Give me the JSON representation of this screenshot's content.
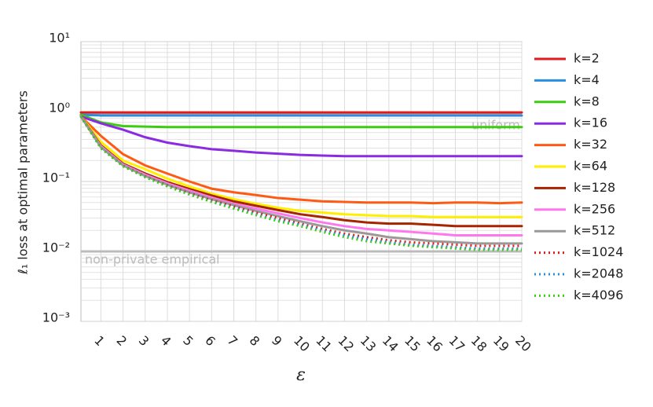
{
  "chart_data": {
    "type": "line",
    "y_label": "ℓ₁ loss at optimal parameters",
    "x_label": "ε",
    "yscale": "log",
    "grid": true,
    "legend": "right",
    "x": [
      0.1,
      1,
      2,
      3,
      4,
      5,
      6,
      7,
      8,
      9,
      10,
      11,
      12,
      13,
      14,
      15,
      16,
      17,
      18,
      19,
      20
    ],
    "xlim": [
      0.1,
      20
    ],
    "xticks": [
      1,
      2,
      3,
      4,
      5,
      6,
      7,
      8,
      9,
      10,
      11,
      12,
      13,
      14,
      15,
      16,
      17,
      18,
      19,
      20
    ],
    "ylim": [
      0.001,
      10
    ],
    "yticks": [
      {
        "value": 0.001,
        "label": "10⁻³"
      },
      {
        "value": 0.01,
        "label": "10⁻²"
      },
      {
        "value": 0.1,
        "label": "10⁻¹"
      },
      {
        "value": 1,
        "label": "10⁰"
      },
      {
        "value": 10,
        "label": "10¹"
      }
    ],
    "reference_lines": [
      {
        "label": "uniform",
        "value": 0.95,
        "color": "#bbbbbb"
      },
      {
        "label": "non-private empirical",
        "value": 0.01,
        "color": "#bbbbbb"
      }
    ],
    "series": [
      {
        "name": "k=2",
        "color": "#e31a1c",
        "dash": "solid",
        "values": [
          0.97,
          0.97,
          0.97,
          0.97,
          0.97,
          0.97,
          0.97,
          0.97,
          0.97,
          0.97,
          0.97,
          0.97,
          0.97,
          0.97,
          0.97,
          0.97,
          0.97,
          0.97,
          0.97,
          0.97,
          0.97
        ]
      },
      {
        "name": "k=4",
        "color": "#2a8ee0",
        "dash": "solid",
        "values": [
          0.9,
          0.88,
          0.88,
          0.88,
          0.88,
          0.88,
          0.88,
          0.88,
          0.88,
          0.88,
          0.88,
          0.88,
          0.88,
          0.88,
          0.88,
          0.88,
          0.88,
          0.88,
          0.88,
          0.88,
          0.88
        ]
      },
      {
        "name": "k=8",
        "color": "#3ccc10",
        "dash": "solid",
        "values": [
          0.9,
          0.7,
          0.62,
          0.61,
          0.6,
          0.6,
          0.6,
          0.6,
          0.6,
          0.6,
          0.6,
          0.6,
          0.6,
          0.6,
          0.6,
          0.6,
          0.6,
          0.6,
          0.6,
          0.6,
          0.6
        ]
      },
      {
        "name": "k=16",
        "color": "#8a2be2",
        "dash": "solid",
        "values": [
          0.85,
          0.68,
          0.55,
          0.43,
          0.36,
          0.32,
          0.29,
          0.275,
          0.26,
          0.25,
          0.24,
          0.235,
          0.23,
          0.23,
          0.23,
          0.23,
          0.23,
          0.23,
          0.23,
          0.23,
          0.23
        ]
      },
      {
        "name": "k=32",
        "color": "#ff5a14",
        "dash": "solid",
        "values": [
          0.85,
          0.45,
          0.246,
          0.17,
          0.13,
          0.1,
          0.079,
          0.07,
          0.064,
          0.058,
          0.055,
          0.052,
          0.051,
          0.05,
          0.05,
          0.05,
          0.049,
          0.05,
          0.05,
          0.049,
          0.05
        ]
      },
      {
        "name": "k=64",
        "color": "#ffee00",
        "dash": "solid",
        "values": [
          0.85,
          0.37,
          0.2,
          0.15,
          0.11,
          0.085,
          0.067,
          0.056,
          0.048,
          0.042,
          0.038,
          0.036,
          0.034,
          0.033,
          0.032,
          0.032,
          0.031,
          0.031,
          0.031,
          0.031,
          0.031
        ]
      },
      {
        "name": "k=128",
        "color": "#a82400",
        "dash": "solid",
        "values": [
          0.85,
          0.33,
          0.18,
          0.13,
          0.098,
          0.078,
          0.063,
          0.052,
          0.045,
          0.039,
          0.034,
          0.031,
          0.028,
          0.026,
          0.025,
          0.025,
          0.024,
          0.023,
          0.023,
          0.023,
          0.023
        ]
      },
      {
        "name": "k=256",
        "color": "#ff77ee",
        "dash": "solid",
        "values": [
          0.85,
          0.32,
          0.175,
          0.125,
          0.094,
          0.074,
          0.059,
          0.048,
          0.041,
          0.035,
          0.03,
          0.026,
          0.023,
          0.021,
          0.02,
          0.019,
          0.018,
          0.017,
          0.017,
          0.017,
          0.017
        ]
      },
      {
        "name": "k=512",
        "color": "#999999",
        "dash": "solid",
        "values": [
          0.85,
          0.31,
          0.17,
          0.12,
          0.09,
          0.07,
          0.056,
          0.046,
          0.038,
          0.032,
          0.027,
          0.023,
          0.02,
          0.018,
          0.016,
          0.015,
          0.014,
          0.0135,
          0.013,
          0.013,
          0.013
        ]
      },
      {
        "name": "k=1024",
        "color": "#e31a1c",
        "dash": "dotted",
        "values": [
          0.85,
          0.3,
          0.168,
          0.118,
          0.088,
          0.068,
          0.054,
          0.044,
          0.036,
          0.03,
          0.025,
          0.021,
          0.018,
          0.016,
          0.0145,
          0.0135,
          0.013,
          0.0125,
          0.012,
          0.012,
          0.012
        ]
      },
      {
        "name": "k=2048",
        "color": "#2a8ee0",
        "dash": "dotted",
        "values": [
          0.85,
          0.3,
          0.166,
          0.116,
          0.086,
          0.066,
          0.052,
          0.042,
          0.034,
          0.028,
          0.024,
          0.02,
          0.017,
          0.015,
          0.0135,
          0.0125,
          0.012,
          0.0115,
          0.011,
          0.011,
          0.011
        ]
      },
      {
        "name": "k=4096",
        "color": "#3ccc10",
        "dash": "dotted",
        "values": [
          0.85,
          0.3,
          0.165,
          0.115,
          0.085,
          0.065,
          0.051,
          0.041,
          0.033,
          0.027,
          0.023,
          0.019,
          0.016,
          0.014,
          0.013,
          0.012,
          0.0115,
          0.011,
          0.0105,
          0.0105,
          0.0105
        ]
      }
    ]
  }
}
